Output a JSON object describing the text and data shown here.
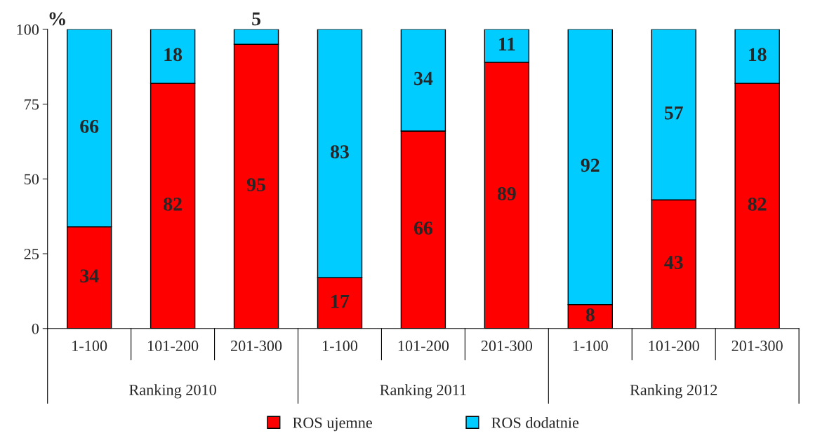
{
  "chart_data": {
    "type": "bar",
    "stacked": true,
    "ylabel": "%",
    "categories": [
      "1-100",
      "101-200",
      "201-300",
      "1-100",
      "101-200",
      "201-300",
      "1-100",
      "101-200",
      "201-300"
    ],
    "series": [
      {
        "name": "ROS ujemne",
        "color": "#ff0000",
        "values": [
          34,
          82,
          95,
          17,
          66,
          89,
          8,
          43,
          82
        ]
      },
      {
        "name": "ROS dodatnie",
        "color": "#00ccff",
        "values": [
          66,
          18,
          5,
          83,
          34,
          11,
          92,
          57,
          18
        ]
      }
    ],
    "annotations": [
      "Ranking 2010",
      "Ranking 2011",
      "Ranking 2012"
    ],
    "ylim": [
      0,
      100
    ],
    "yticks": [
      0,
      25,
      50,
      75,
      100
    ],
    "data_labels": true,
    "grid": false,
    "legend": "bottom"
  }
}
